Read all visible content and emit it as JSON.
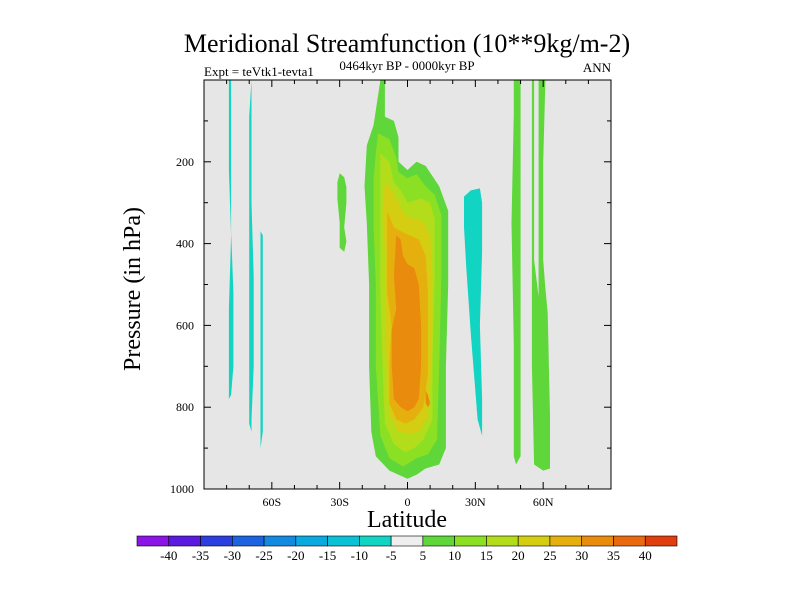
{
  "chart_data": {
    "type": "heatmap",
    "title": "Meridional Streamfunction (10**9kg/m-2)",
    "subtitle_left": "Expt = teVtk1-tevta1",
    "subtitle_center": "0464kyr BP - 0000kyr BP",
    "subtitle_right": "ANN",
    "xlabel": "Latitude",
    "ylabel": "Pressure (in hPa)",
    "xlim": [
      -90,
      90
    ],
    "ylim": [
      0,
      1000
    ],
    "x_ticks": [
      {
        "value": -60,
        "label": "60S"
      },
      {
        "value": -30,
        "label": "30S"
      },
      {
        "value": 0,
        "label": "0"
      },
      {
        "value": 30,
        "label": "30N"
      },
      {
        "value": 60,
        "label": "60N"
      }
    ],
    "y_ticks": [
      {
        "value": 200,
        "label": "200"
      },
      {
        "value": 400,
        "label": "400"
      },
      {
        "value": 600,
        "label": "600"
      },
      {
        "value": 800,
        "label": "800"
      },
      {
        "value": 1000,
        "label": "1000"
      }
    ],
    "colorbar": {
      "labels": [
        "-40",
        "-35",
        "-30",
        "-25",
        "-20",
        "-15",
        "-10",
        "-5",
        "5",
        "10",
        "15",
        "20",
        "25",
        "30",
        "35",
        "40"
      ],
      "colors": [
        "#8a15e6",
        "#5a1ae0",
        "#2d3ee0",
        "#1d62df",
        "#1389df",
        "#0aa9df",
        "#0ac1d6",
        "#12d4c2",
        "#eeeeee",
        "#5fd63a",
        "#8ce024",
        "#b3dd1a",
        "#d4cd12",
        "#e5b00d",
        "#e98c0d",
        "#e8690f",
        "#e03e0f"
      ]
    },
    "contours": [
      {
        "name": "positive-5-lat30s-blob",
        "level": "5",
        "points": [
          [
            -30,
            228
          ],
          [
            -28,
            238
          ],
          [
            -27,
            262
          ],
          [
            -27,
            300
          ],
          [
            -28,
            360
          ],
          [
            -27,
            395
          ],
          [
            -28,
            420
          ],
          [
            -30,
            410
          ],
          [
            -30,
            350
          ],
          [
            -31,
            290
          ],
          [
            -31,
            250
          ]
        ]
      },
      {
        "name": "negative-5-lat80s-strip",
        "level": "-5",
        "points": [
          [
            -79,
            0
          ],
          [
            -78,
            0
          ],
          [
            -78,
            300
          ],
          [
            -78,
            370
          ],
          [
            -77,
            520
          ],
          [
            -77,
            700
          ],
          [
            -78,
            770
          ],
          [
            -79,
            780
          ],
          [
            -79,
            560
          ],
          [
            -78,
            380
          ],
          [
            -79,
            220
          ]
        ]
      },
      {
        "name": "negative-5-lat70s-strip",
        "level": "-5",
        "points": [
          [
            -69,
            0
          ],
          [
            -69,
            0
          ],
          [
            -69,
            300
          ],
          [
            -68,
            480
          ],
          [
            -68,
            700
          ],
          [
            -69,
            830
          ],
          [
            -69,
            860
          ],
          [
            -70,
            840
          ],
          [
            -70,
            600
          ],
          [
            -70,
            350
          ],
          [
            -70,
            90
          ]
        ]
      },
      {
        "name": "negative-5-lat64s-strip",
        "level": "-5",
        "points": [
          [
            -65,
            370
          ],
          [
            -64,
            380
          ],
          [
            -64,
            560
          ],
          [
            -64,
            730
          ],
          [
            -64,
            860
          ],
          [
            -65,
            900
          ],
          [
            -65,
            810
          ],
          [
            -65,
            600
          ]
        ]
      },
      {
        "name": "negative-5-lat28n-strip",
        "level": "-5",
        "points": [
          [
            25,
            285
          ],
          [
            28,
            270
          ],
          [
            32,
            265
          ],
          [
            33,
            300
          ],
          [
            33,
            420
          ],
          [
            32,
            600
          ],
          [
            33,
            780
          ],
          [
            33,
            870
          ],
          [
            31,
            830
          ],
          [
            28,
            620
          ],
          [
            26,
            460
          ],
          [
            25,
            360
          ]
        ]
      },
      {
        "name": "positive-5-lat48n-strip",
        "level": "5",
        "points": [
          [
            47,
            0
          ],
          [
            50,
            0
          ],
          [
            50,
            200
          ],
          [
            50,
            500
          ],
          [
            50,
            780
          ],
          [
            50,
            920
          ],
          [
            48,
            940
          ],
          [
            47,
            920
          ],
          [
            47,
            650
          ],
          [
            46,
            350
          ],
          [
            47,
            80
          ]
        ]
      },
      {
        "name": "positive-5-lat55n-strip",
        "level": "5",
        "points": [
          [
            53,
            0
          ],
          [
            55,
            0
          ],
          [
            55,
            280
          ],
          [
            55,
            480
          ],
          [
            55,
            700
          ],
          [
            56,
            940
          ],
          [
            60,
            955
          ],
          [
            63,
            950
          ],
          [
            63,
            820
          ],
          [
            62,
            570
          ],
          [
            61,
            510
          ],
          [
            60,
            440
          ],
          [
            60,
            380
          ],
          [
            60,
            200
          ],
          [
            61,
            0
          ],
          [
            58,
            0
          ],
          [
            58,
            280
          ],
          [
            58,
            450
          ],
          [
            58,
            530
          ],
          [
            56,
            440
          ],
          [
            56,
            200
          ],
          [
            56,
            0
          ]
        ]
      },
      {
        "name": "positive-5-tropical-cell",
        "level": "5",
        "points": [
          [
            -12,
            0
          ],
          [
            -10,
            0
          ],
          [
            -10,
            90
          ],
          [
            -6,
            100
          ],
          [
            -4,
            140
          ],
          [
            -4,
            200
          ],
          [
            0,
            220
          ],
          [
            4,
            200
          ],
          [
            8,
            210
          ],
          [
            14,
            260
          ],
          [
            18,
            320
          ],
          [
            18,
            500
          ],
          [
            17,
            700
          ],
          [
            17,
            900
          ],
          [
            14,
            940
          ],
          [
            8,
            950
          ],
          [
            4,
            965
          ],
          [
            0,
            975
          ],
          [
            -4,
            965
          ],
          [
            -8,
            955
          ],
          [
            -14,
            920
          ],
          [
            -16,
            860
          ],
          [
            -17,
            700
          ],
          [
            -17,
            500
          ],
          [
            -18,
            350
          ],
          [
            -19,
            260
          ],
          [
            -18,
            160
          ],
          [
            -15,
            110
          ]
        ]
      },
      {
        "name": "positive-10-tropical-cell",
        "level": "10",
        "points": [
          [
            -13,
            130
          ],
          [
            -8,
            145
          ],
          [
            -5,
            190
          ],
          [
            -4,
            225
          ],
          [
            0,
            240
          ],
          [
            4,
            230
          ],
          [
            8,
            260
          ],
          [
            12,
            280
          ],
          [
            15,
            330
          ],
          [
            15,
            480
          ],
          [
            14,
            700
          ],
          [
            13,
            880
          ],
          [
            9,
            915
          ],
          [
            4,
            925
          ],
          [
            -2,
            945
          ],
          [
            -8,
            925
          ],
          [
            -12,
            870
          ],
          [
            -14,
            700
          ],
          [
            -14,
            500
          ],
          [
            -15,
            360
          ],
          [
            -15,
            240
          ],
          [
            -14,
            180
          ]
        ]
      },
      {
        "name": "positive-15-tropical-cell",
        "level": "15",
        "points": [
          [
            -12,
            180
          ],
          [
            -8,
            200
          ],
          [
            -6,
            250
          ],
          [
            -3,
            270
          ],
          [
            0,
            300
          ],
          [
            6,
            290
          ],
          [
            10,
            300
          ],
          [
            12,
            340
          ],
          [
            12,
            480
          ],
          [
            11,
            700
          ],
          [
            11,
            830
          ],
          [
            7,
            880
          ],
          [
            3,
            900
          ],
          [
            -1,
            910
          ],
          [
            -6,
            890
          ],
          [
            -10,
            840
          ],
          [
            -11,
            700
          ],
          [
            -12,
            520
          ],
          [
            -12,
            380
          ],
          [
            -12,
            270
          ]
        ]
      },
      {
        "name": "positive-20-tropical-cell",
        "level": "20",
        "points": [
          [
            -10,
            250
          ],
          [
            -7,
            270
          ],
          [
            -4,
            300
          ],
          [
            -1,
            330
          ],
          [
            3,
            340
          ],
          [
            7,
            345
          ],
          [
            10,
            380
          ],
          [
            11,
            480
          ],
          [
            11,
            600
          ],
          [
            10,
            750
          ],
          [
            9,
            820
          ],
          [
            5,
            860
          ],
          [
            1,
            865
          ],
          [
            -4,
            860
          ],
          [
            -8,
            820
          ],
          [
            -9,
            720
          ],
          [
            -10,
            580
          ],
          [
            -10,
            420
          ],
          [
            -11,
            330
          ]
        ]
      },
      {
        "name": "positive-25-tropical-cell",
        "level": "25",
        "points": [
          [
            -9,
            320
          ],
          [
            -6,
            360
          ],
          [
            -3,
            370
          ],
          [
            1,
            380
          ],
          [
            5,
            390
          ],
          [
            8,
            430
          ],
          [
            9,
            520
          ],
          [
            9,
            640
          ],
          [
            9,
            720
          ],
          [
            7,
            800
          ],
          [
            3,
            830
          ],
          [
            -1,
            840
          ],
          [
            -5,
            830
          ],
          [
            -8,
            790
          ],
          [
            -8,
            690
          ],
          [
            -7,
            600
          ],
          [
            -9,
            520
          ],
          [
            -9,
            440
          ]
        ]
      },
      {
        "name": "positive-30-tropical-core",
        "level": "30",
        "points": [
          [
            -5,
            380
          ],
          [
            -3,
            390
          ],
          [
            -2,
            430
          ],
          [
            0,
            450
          ],
          [
            3,
            460
          ],
          [
            5,
            500
          ],
          [
            6,
            600
          ],
          [
            6,
            700
          ],
          [
            5,
            780
          ],
          [
            3,
            800
          ],
          [
            0,
            810
          ],
          [
            -3,
            800
          ],
          [
            -6,
            780
          ],
          [
            -7,
            700
          ],
          [
            -7,
            610
          ],
          [
            -5,
            560
          ],
          [
            -6,
            480
          ]
        ]
      },
      {
        "name": "positive-30-lat9n-fleck",
        "level": "30",
        "points": [
          [
            8,
            760
          ],
          [
            9,
            770
          ],
          [
            10,
            790
          ],
          [
            9,
            800
          ],
          [
            8,
            790
          ]
        ]
      }
    ]
  }
}
